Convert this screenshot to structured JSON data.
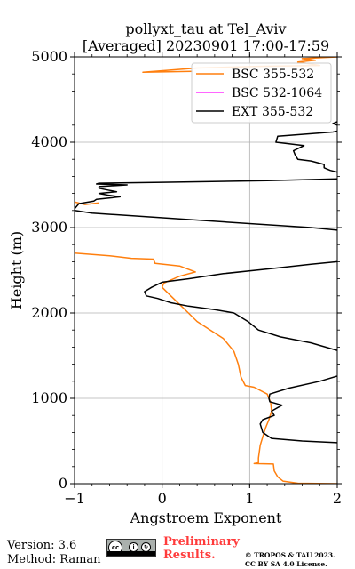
{
  "chart_data": {
    "type": "line",
    "title": "pollyxt_tau at Tel_Aviv",
    "subtitle": "[Averaged] 20230901 17:00-17:59",
    "xlabel": "Angstroem Exponent",
    "ylabel": "Height (m)",
    "xlim": [
      -1,
      2
    ],
    "ylim": [
      0,
      5000
    ],
    "xticks": [
      -1,
      0,
      1,
      2
    ],
    "yticks": [
      0,
      1000,
      2000,
      3000,
      4000,
      5000
    ],
    "grid": true,
    "legend_position": "top-right",
    "series": [
      {
        "name": "BSC 355-532",
        "color": "#ff7f0e",
        "points": [
          [
            2.0,
            0
          ],
          [
            1.55,
            5
          ],
          [
            1.38,
            30
          ],
          [
            1.32,
            80
          ],
          [
            1.28,
            150
          ],
          [
            1.27,
            230
          ],
          [
            1.05,
            235
          ],
          [
            1.1,
            245
          ],
          [
            1.1,
            300
          ],
          [
            1.12,
            450
          ],
          [
            1.15,
            550
          ],
          [
            1.18,
            650
          ],
          [
            1.22,
            750
          ],
          [
            1.25,
            850
          ],
          [
            1.24,
            950
          ],
          [
            1.2,
            1050
          ],
          [
            1.05,
            1130
          ],
          [
            0.95,
            1150
          ],
          [
            0.9,
            1250
          ],
          [
            0.87,
            1400
          ],
          [
            0.82,
            1550
          ],
          [
            0.7,
            1700
          ],
          [
            0.55,
            1800
          ],
          [
            0.4,
            1900
          ],
          [
            0.3,
            2000
          ],
          [
            0.2,
            2100
          ],
          [
            0.1,
            2200
          ],
          [
            0.0,
            2300
          ],
          [
            0.02,
            2350
          ],
          [
            0.2,
            2430
          ],
          [
            0.38,
            2480
          ],
          [
            0.2,
            2550
          ],
          [
            -0.08,
            2580
          ],
          [
            -0.1,
            2630
          ],
          [
            -0.35,
            2640
          ],
          [
            -0.6,
            2670
          ],
          [
            -1.0,
            2700
          ]
        ]
      },
      {
        "name": "BSC 355-532",
        "color": "#ff7f0e",
        "points": [
          [
            -0.72,
            3290
          ],
          [
            -0.88,
            3270
          ],
          [
            -1.0,
            3300
          ]
        ]
      },
      {
        "name": "BSC 355-532",
        "color": "#ff7f0e",
        "points": [
          [
            0.35,
            4830
          ],
          [
            -0.22,
            4820
          ],
          [
            0.4,
            4870
          ],
          [
            1.1,
            4890
          ],
          [
            1.8,
            4900
          ],
          [
            1.55,
            4940
          ],
          [
            1.75,
            4960
          ],
          [
            1.6,
            4980
          ],
          [
            2.0,
            5000
          ]
        ]
      },
      {
        "name": "BSC 532-1064",
        "color": "#ff33ff",
        "points": []
      },
      {
        "name": "EXT 355-532",
        "color": "#000000",
        "points": [
          [
            2.0,
            480
          ],
          [
            1.6,
            500
          ],
          [
            1.25,
            530
          ],
          [
            1.15,
            600
          ],
          [
            1.12,
            700
          ],
          [
            1.15,
            750
          ],
          [
            1.28,
            800
          ],
          [
            1.25,
            850
          ],
          [
            1.37,
            920
          ],
          [
            1.23,
            960
          ],
          [
            1.22,
            1000
          ],
          [
            1.23,
            1050
          ],
          [
            1.45,
            1120
          ],
          [
            1.8,
            1200
          ],
          [
            2.0,
            1260
          ]
        ]
      },
      {
        "name": "EXT 355-532",
        "color": "#000000",
        "points": [
          [
            2.0,
            1560
          ],
          [
            1.7,
            1650
          ],
          [
            1.35,
            1720
          ],
          [
            1.1,
            1800
          ],
          [
            0.98,
            1900
          ],
          [
            0.82,
            2000
          ],
          [
            0.6,
            2040
          ],
          [
            0.3,
            2080
          ],
          [
            0.1,
            2120
          ],
          [
            -0.05,
            2170
          ],
          [
            -0.18,
            2200
          ],
          [
            -0.2,
            2250
          ],
          [
            -0.12,
            2300
          ],
          [
            0.0,
            2360
          ],
          [
            0.3,
            2400
          ],
          [
            0.7,
            2460
          ],
          [
            1.25,
            2520
          ],
          [
            1.7,
            2570
          ],
          [
            2.0,
            2600
          ]
        ]
      },
      {
        "name": "EXT 355-532",
        "color": "#000000",
        "points": [
          [
            2.0,
            2970
          ],
          [
            1.7,
            3000
          ],
          [
            0.8,
            3060
          ],
          [
            -0.8,
            3170
          ],
          [
            -1.0,
            3200
          ]
        ]
      },
      {
        "name": "EXT 355-532",
        "color": "#000000",
        "points": [
          [
            -1.0,
            3220
          ],
          [
            -0.95,
            3280
          ],
          [
            -0.78,
            3310
          ],
          [
            -0.75,
            3330
          ],
          [
            -0.48,
            3360
          ],
          [
            -0.62,
            3380
          ],
          [
            -0.72,
            3400
          ],
          [
            -0.52,
            3420
          ],
          [
            -0.62,
            3440
          ],
          [
            -0.72,
            3460
          ],
          [
            -0.72,
            3480
          ],
          [
            -0.4,
            3500
          ],
          [
            -0.75,
            3510
          ],
          [
            -0.72,
            3520
          ],
          [
            0.0,
            3530
          ],
          [
            1.2,
            3550
          ],
          [
            2.0,
            3570
          ]
        ]
      },
      {
        "name": "EXT 355-532",
        "color": "#000000",
        "points": [
          [
            2.0,
            3650
          ],
          [
            1.92,
            3670
          ],
          [
            1.85,
            3700
          ],
          [
            1.85,
            3740
          ],
          [
            1.7,
            3780
          ],
          [
            1.55,
            3800
          ],
          [
            1.52,
            3850
          ],
          [
            1.5,
            3900
          ],
          [
            1.62,
            3960
          ],
          [
            1.3,
            4000
          ],
          [
            1.32,
            4070
          ],
          [
            1.95,
            4120
          ],
          [
            2.0,
            4130
          ]
        ]
      },
      {
        "name": "EXT 355-532",
        "color": "#000000",
        "points": [
          [
            2.0,
            4200
          ],
          [
            1.95,
            4220
          ],
          [
            2.0,
            4240
          ]
        ]
      }
    ],
    "legend": [
      {
        "label": "BSC 355-532",
        "color": "#ff7f0e"
      },
      {
        "label": "BSC 532-1064",
        "color": "#ff33ff"
      },
      {
        "label": "EXT 355-532",
        "color": "#000000"
      }
    ]
  },
  "footer": {
    "version": "Version: 3.6",
    "method": "Method: Raman",
    "cc_badge": "cc-by-sa-icon",
    "preliminary_line1": "Preliminary",
    "preliminary_line2": "Results.",
    "copyright_line1": "© TROPOS & TAU 2023.",
    "copyright_line2": "CC BY SA 4.0 License."
  }
}
